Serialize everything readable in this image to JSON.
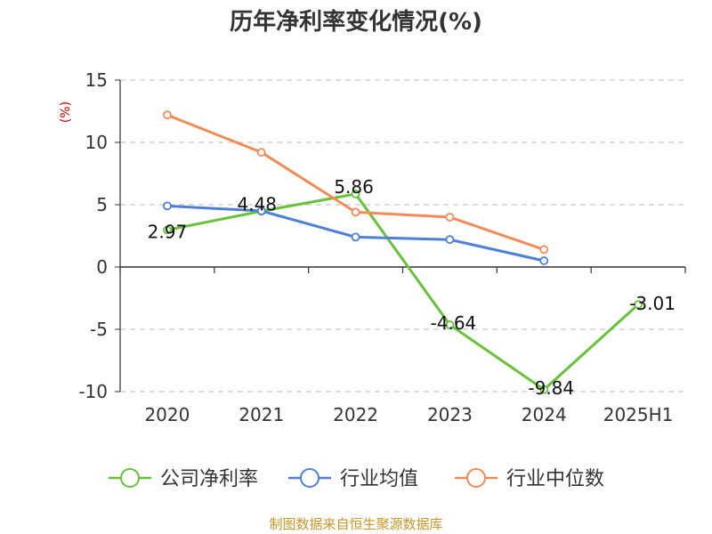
{
  "chart_data": {
    "type": "line",
    "title": "历年净利率变化情况(%)",
    "ylabel": "(%)",
    "ylim": [
      -10,
      15
    ],
    "yticks": [
      15,
      10,
      5,
      0,
      -5,
      -10
    ],
    "categories": [
      "2020",
      "2021",
      "2022",
      "2023",
      "2024",
      "2025H1"
    ],
    "grid": true,
    "legend_position": "bottom",
    "series": [
      {
        "name": "公司净利率",
        "color": "#67c23a",
        "values": [
          2.97,
          4.48,
          5.86,
          -4.64,
          -9.84,
          -3.01
        ],
        "show_labels": true
      },
      {
        "name": "行业均值",
        "color": "#4e7fd9",
        "values": [
          4.9,
          4.5,
          2.4,
          2.2,
          0.5,
          null
        ],
        "show_labels": false
      },
      {
        "name": "行业中位数",
        "color": "#f28c57",
        "values": [
          12.2,
          9.2,
          4.4,
          4.0,
          1.4,
          null
        ],
        "show_labels": false
      }
    ],
    "source": "制图数据来自恒生聚源数据库"
  }
}
